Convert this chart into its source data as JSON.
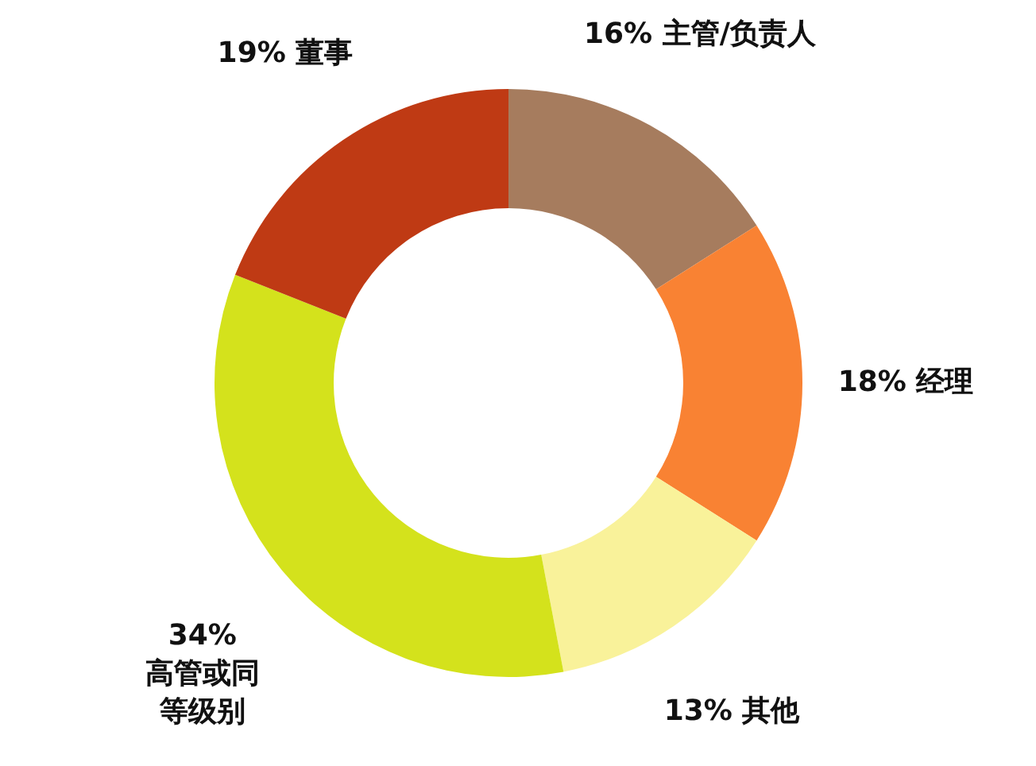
{
  "chart_data": {
    "type": "donut",
    "categories": [
      "主管/负责人",
      "经理",
      "其他",
      "高管或同等级别",
      "董事"
    ],
    "values": [
      16,
      18,
      13,
      34,
      19
    ],
    "colors": [
      "#a67c5e",
      "#f98233",
      "#f9f29a",
      "#d4e21c",
      "#bf3a14"
    ],
    "value_labels": [
      "16%",
      "18%",
      "13%",
      "34%",
      "19%"
    ],
    "legend": false
  }
}
